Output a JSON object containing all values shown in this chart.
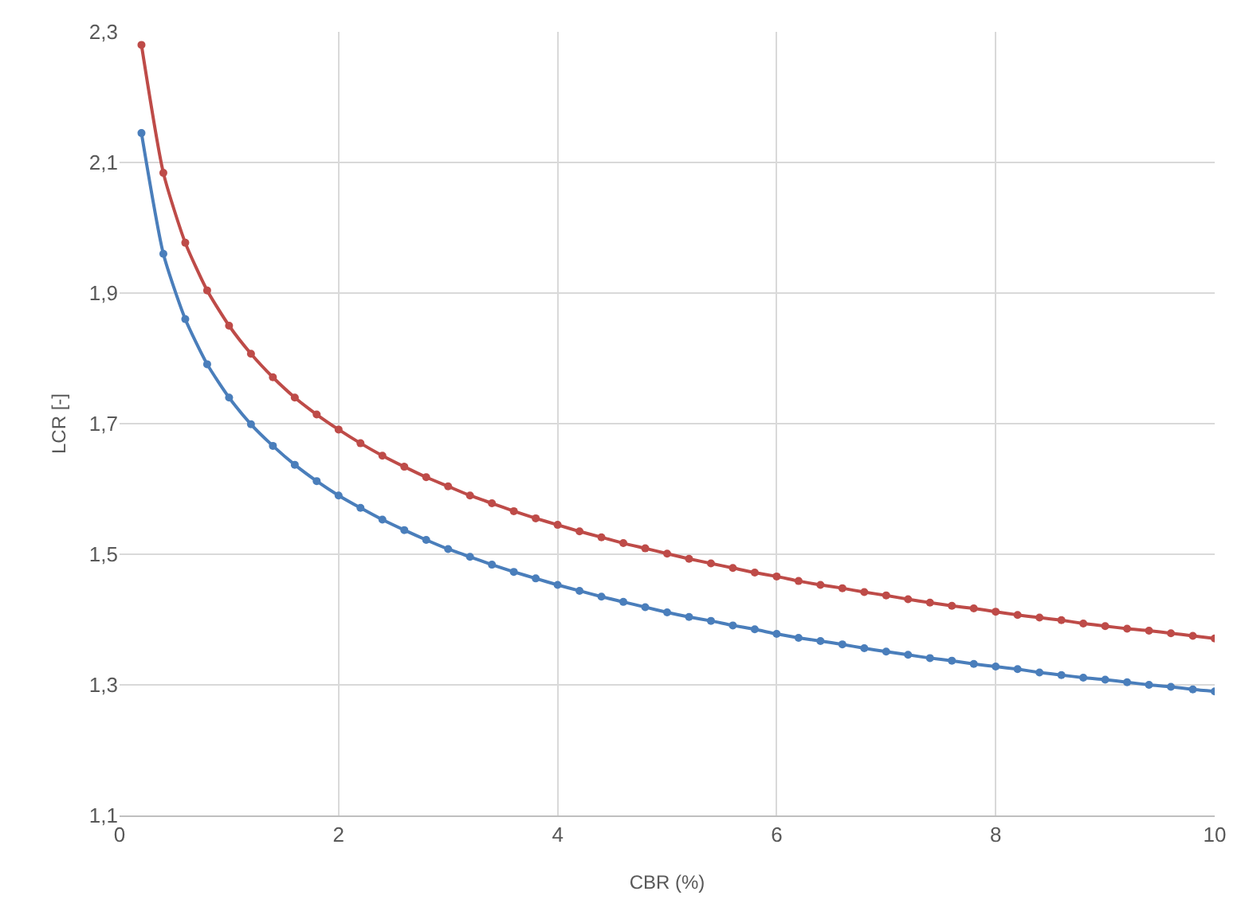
{
  "chart_data": {
    "type": "line",
    "xlabel": "CBR (%)",
    "ylabel": "LCR [-]",
    "x": [
      0.2,
      0.4,
      0.6,
      0.8,
      1,
      1.2,
      1.4,
      1.6,
      1.8,
      2,
      2.2,
      2.4,
      2.6,
      2.8,
      3,
      3.2,
      3.4,
      3.6,
      3.8,
      4,
      4.2,
      4.4,
      4.6,
      4.8,
      5,
      5.2,
      5.4,
      5.6,
      5.8,
      6,
      6.2,
      6.4,
      6.6,
      6.8,
      7,
      7.2,
      7.4,
      7.6,
      7.8,
      8,
      8.2,
      8.4,
      8.6,
      8.8,
      9,
      9.2,
      9.4,
      9.6,
      9.8,
      10
    ],
    "series": [
      {
        "color": "#4a7ebb",
        "values": [
          2.145,
          1.96,
          1.86,
          1.791,
          1.74,
          1.699,
          1.666,
          1.637,
          1.612,
          1.59,
          1.571,
          1.553,
          1.537,
          1.522,
          1.508,
          1.496,
          1.484,
          1.473,
          1.463,
          1.453,
          1.444,
          1.435,
          1.427,
          1.419,
          1.411,
          1.404,
          1.398,
          1.391,
          1.385,
          1.378,
          1.372,
          1.367,
          1.362,
          1.356,
          1.351,
          1.346,
          1.341,
          1.337,
          1.332,
          1.328,
          1.324,
          1.319,
          1.315,
          1.311,
          1.308,
          1.304,
          1.3,
          1.297,
          1.293,
          1.29
        ]
      },
      {
        "color": "#be4b48",
        "values": [
          2.28,
          2.084,
          1.977,
          1.904,
          1.85,
          1.807,
          1.771,
          1.74,
          1.714,
          1.691,
          1.67,
          1.651,
          1.634,
          1.618,
          1.604,
          1.59,
          1.578,
          1.566,
          1.555,
          1.545,
          1.535,
          1.526,
          1.517,
          1.509,
          1.501,
          1.493,
          1.486,
          1.479,
          1.472,
          1.466,
          1.459,
          1.453,
          1.448,
          1.442,
          1.437,
          1.431,
          1.426,
          1.421,
          1.417,
          1.412,
          1.407,
          1.403,
          1.399,
          1.394,
          1.39,
          1.386,
          1.383,
          1.379,
          1.375,
          1.371
        ]
      }
    ],
    "xlim": [
      0,
      10
    ],
    "xticks": [
      0,
      2,
      4,
      6,
      8,
      10
    ],
    "ylim": [
      1.1,
      2.3
    ],
    "yticks": [
      {
        "value": 1.1,
        "label": "1,1"
      },
      {
        "value": 1.3,
        "label": "1,3"
      },
      {
        "value": 1.5,
        "label": "1,5"
      },
      {
        "value": 1.7,
        "label": "1,7"
      },
      {
        "value": 1.9,
        "label": "1,9"
      },
      {
        "value": 2.1,
        "label": "2,1"
      },
      {
        "value": 2.3,
        "label": "2,3"
      }
    ],
    "grid": true,
    "marker": "circle",
    "line_style": "solid"
  }
}
